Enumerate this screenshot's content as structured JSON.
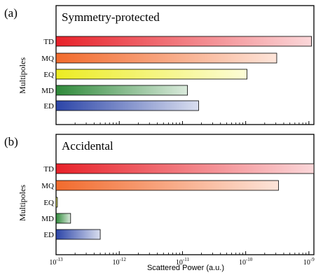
{
  "chart_data": [
    {
      "type": "bar",
      "orientation": "horizontal",
      "panel_label": "(a)",
      "title": "Symmetry-protected",
      "ylabel": "Multipoles",
      "categories": [
        "TD",
        "MQ",
        "EQ",
        "MD",
        "ED"
      ],
      "values": [
        1.1e-09,
        3.1e-10,
        1.05e-10,
        1.2e-11,
        1.8e-11
      ],
      "colors": [
        "#e8222a",
        "#f26b2d",
        "#ecec23",
        "#2f8a3a",
        "#2c45a8"
      ],
      "xscale": "log",
      "xlim": [
        1e-13,
        1.2e-09
      ],
      "xtick_labels_visible": false
    },
    {
      "type": "bar",
      "orientation": "horizontal",
      "panel_label": "(b)",
      "title": "Accidental",
      "ylabel": "Multipoles",
      "categories": [
        "TD",
        "MQ",
        "EQ",
        "MD",
        "ED"
      ],
      "values": [
        1.2e-09,
        3.3e-10,
        1.05e-13,
        1.7e-13,
        5e-13
      ],
      "colors": [
        "#e8222a",
        "#f26b2d",
        "#ecec23",
        "#2f8a3a",
        "#2c45a8"
      ],
      "xscale": "log",
      "xlim": [
        1e-13,
        1.2e-09
      ],
      "xlabel": "Scattered Power (a.u.)",
      "xticks": [
        {
          "mant": "10",
          "exp": "-13"
        },
        {
          "mant": "10",
          "exp": "-12"
        },
        {
          "mant": "10",
          "exp": "-11"
        },
        {
          "mant": "10",
          "exp": "-10"
        },
        {
          "mant": "10",
          "exp": "-9"
        }
      ]
    }
  ]
}
